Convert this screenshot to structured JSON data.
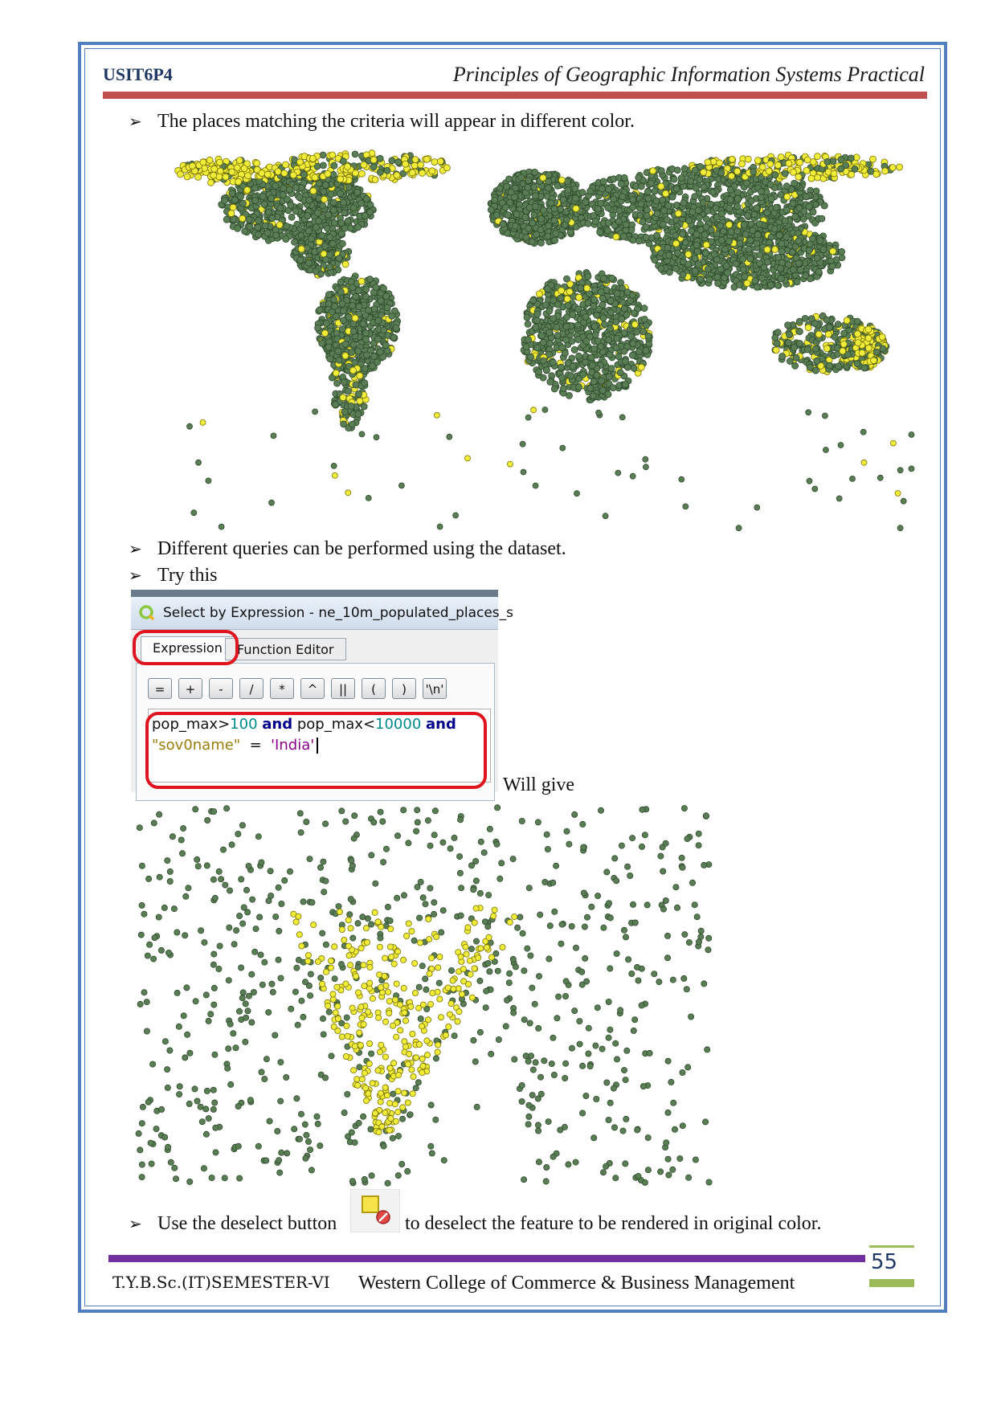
{
  "header": {
    "course_code": "USIT6P4",
    "title": "Principles of Geographic Information Systems Practical"
  },
  "bullets": {
    "b1": "The places matching the criteria will appear in different color.",
    "b2": "Different queries can be performed using the dataset.",
    "b3": "Try this",
    "b4_before": "Use the deselect button",
    "b4_after": "to deselect the feature to be rendered in original color."
  },
  "dialog": {
    "title": "Select by Expression - ne_10m_populated_places_s",
    "tabs": [
      "Expression",
      "Function Editor"
    ],
    "operators": [
      "=",
      "+",
      "-",
      "/",
      "*",
      "^",
      "||",
      "(",
      ")",
      "'\\n'"
    ],
    "expression": {
      "t1": "pop_max>",
      "t2": "100",
      "t3": "and",
      "t4": "pop_max<",
      "t5": "10000",
      "t6": "and",
      "t7": "\"sov0name\"",
      "t8": "=",
      "t9": "'India'"
    }
  },
  "will_give": "Will give",
  "colors": {
    "selected": "#f0ec3a",
    "unselected": "#5a7d56",
    "header_rule": "#c0504d",
    "footer_rule": "#7030a0",
    "frame": "#4f7fbf",
    "highlight": "#e0141e"
  },
  "icons": {
    "deselect": "deselect-features-icon",
    "qgis": "qgis-logo-icon"
  },
  "footer": {
    "left": "T.Y.B.Sc.(IT)SEMESTER-VI",
    "center": "Western College of Commerce & Business Management",
    "page_number": "55"
  }
}
